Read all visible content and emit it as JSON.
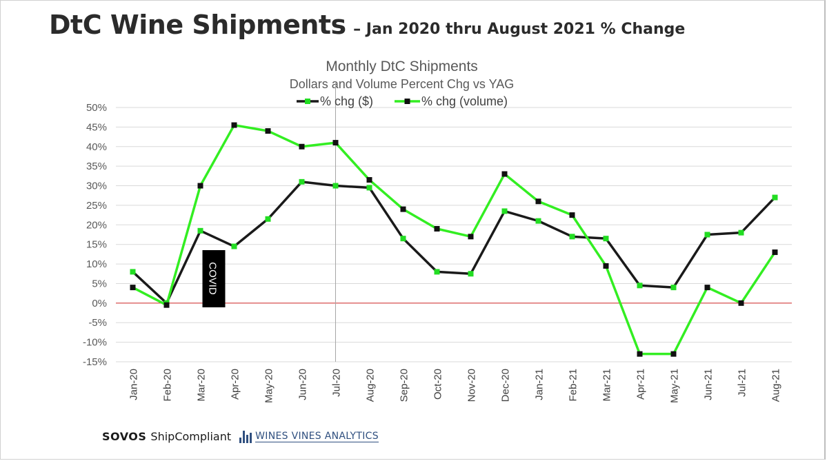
{
  "heading": {
    "main": "DtC Wine Shipments",
    "sub": "– Jan 2020 thru August 2021 % Change"
  },
  "footer": {
    "brand": "SOVOS",
    "product": "ShipCompliant",
    "partner": "WINES VINES ANALYTICS"
  },
  "chart_data": {
    "type": "line",
    "title": "Monthly DtC Shipments",
    "subtitle": "Dollars and Volume Percent Chg vs YAG",
    "categories": [
      "Jan-20",
      "Feb-20",
      "Mar-20",
      "Apr-20",
      "May-20",
      "Jun-20",
      "Jul-20",
      "Aug-20",
      "Sep-20",
      "Oct-20",
      "Nov-20",
      "Dec-20",
      "Jan-21",
      "Feb-21",
      "Mar-21",
      "Apr-21",
      "May-21",
      "Jun-21",
      "Jul-21",
      "Aug-21"
    ],
    "series": [
      {
        "name": "% chg ($)",
        "line_color": "#1a1a1a",
        "marker_color": "#22dd22",
        "values": [
          8,
          0,
          18.5,
          14.5,
          21.5,
          31,
          30,
          29.5,
          16.5,
          8,
          7.5,
          23.5,
          21,
          17,
          16.5,
          4.5,
          4,
          17.5,
          18,
          27
        ]
      },
      {
        "name": "% chg (volume)",
        "line_color": "#33ee22",
        "marker_color": "#111111",
        "values": [
          4,
          -0.5,
          30,
          45.5,
          44,
          40,
          41,
          31.5,
          24,
          19,
          17,
          33,
          26,
          22.5,
          9.5,
          -13,
          -13,
          4,
          0,
          13
        ]
      }
    ],
    "ylim": [
      -15,
      50
    ],
    "yticks": [
      50,
      45,
      40,
      35,
      30,
      25,
      20,
      15,
      10,
      5,
      0,
      -5,
      -10,
      -15
    ],
    "ytick_labels": [
      "50%",
      "45%",
      "40%",
      "35%",
      "30%",
      "25%",
      "20%",
      "15%",
      "10%",
      "5%",
      "0%",
      "-5%",
      "-10%",
      "-15%"
    ],
    "zero_line_color": "#cc2222",
    "vertical_marker_category": "Jul-20",
    "annotation": {
      "text": "COVID",
      "category": "Mar-20"
    },
    "grid": true,
    "legend_position": "top"
  }
}
